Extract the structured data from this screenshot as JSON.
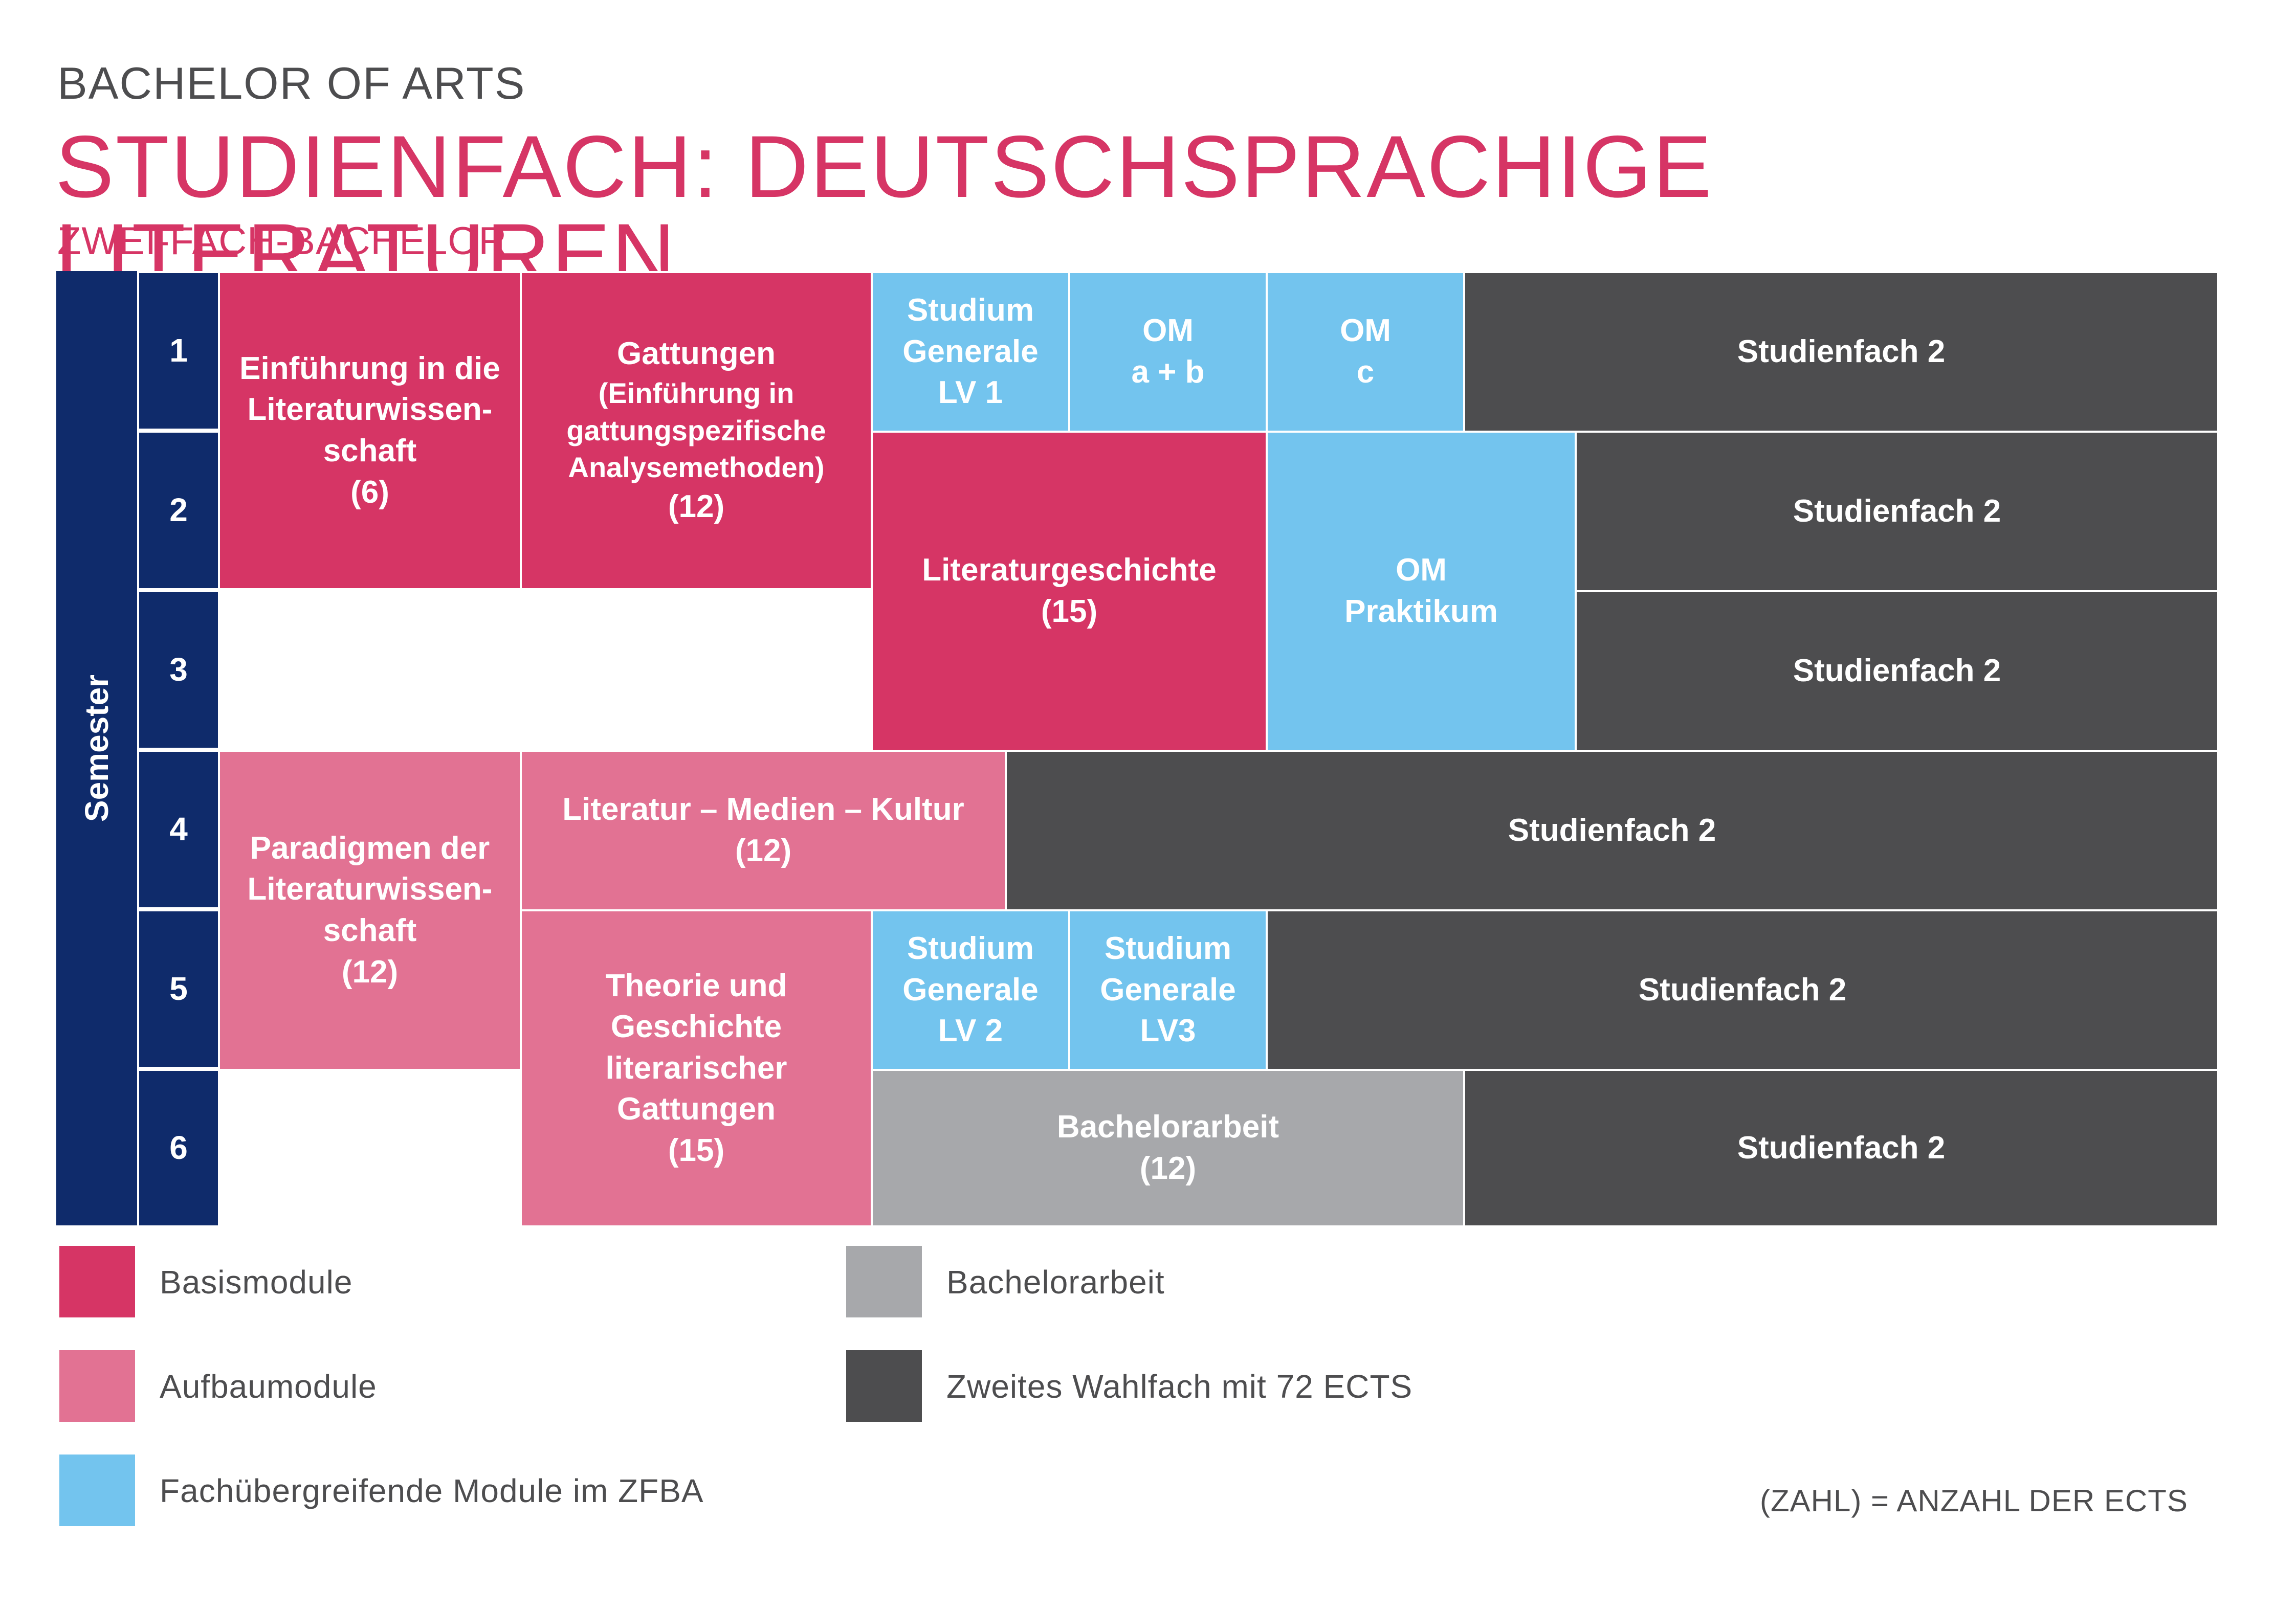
{
  "header": {
    "supertitle": "BACHELOR OF ARTS",
    "title": "STUDIENFACH: DEUTSCHSPRACHIGE LITERATUREN",
    "subtitle": "ZWEI-FACH-BACHELOR"
  },
  "semester": {
    "label": "Semester",
    "numbers": [
      "1",
      "2",
      "3",
      "4",
      "5",
      "6"
    ]
  },
  "modules": {
    "einfuehrung": [
      "Einführung in die",
      "Literaturwissen-",
      "schaft",
      "(6)"
    ],
    "gattungen": [
      "Gattungen",
      "(Einführung in",
      "gattungspezifische",
      "Analysemethoden)",
      "(12)"
    ],
    "sg_lv1": [
      "Studium",
      "Generale",
      "LV 1"
    ],
    "om_ab": [
      "OM",
      "a + b"
    ],
    "om_c": [
      "OM",
      "c"
    ],
    "literaturgeschichte": [
      "Literaturgeschichte",
      "(15)"
    ],
    "om_praktikum": [
      "OM",
      "Praktikum"
    ],
    "paradigmen": [
      "Paradigmen der",
      "Literaturwissen-",
      "schaft",
      "(12)"
    ],
    "lmk": [
      "Literatur – Medien – Kultur",
      "(12)"
    ],
    "theorie": [
      "Theorie und",
      "Geschichte",
      "literarischer",
      "Gattungen",
      "(15)"
    ],
    "sg_lv2": [
      "Studium",
      "Generale",
      "LV 2"
    ],
    "sg_lv3": [
      "Studium",
      "Generale",
      "LV3"
    ],
    "bachelorarbeit": [
      "Bachelorarbeit",
      "(12)"
    ],
    "studienfach2": "Studienfach 2"
  },
  "legend": {
    "basis": "Basismodule",
    "aufbau": "Aufbaumodule",
    "fach": "Fachübergreifende Module im ZFBA",
    "ba": "Bachelorarbeit",
    "dark": "Zweites Wahlfach mit 72 ECTS"
  },
  "footnote": "(ZAHL) = ANZAHL DER ECTS",
  "colors": {
    "navy": "#0f2b6b",
    "basis": "#d63565",
    "aufbau": "#e27293",
    "fach": "#73c4ee",
    "bachelorarbeit": "#a7a8ab",
    "dark": "#4d4d4f"
  }
}
